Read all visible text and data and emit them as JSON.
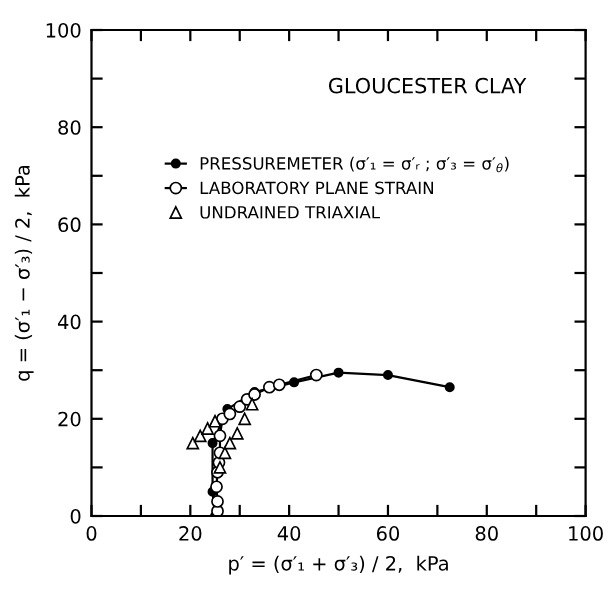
{
  "chart_data": {
    "type": "line",
    "title": "GLOUCESTER CLAY",
    "xlabel": "p′ = (σ′₁ + σ′₃) / 2,  kPa",
    "ylabel": "q = (σ′₁ − σ′₃) / 2,  kPa",
    "xlim": [
      0,
      100
    ],
    "ylim": [
      0,
      100
    ],
    "xticks": [
      0,
      {
        "value": 10,
        "label": null
      },
      20,
      {
        "value": 30,
        "label": null
      },
      40,
      {
        "value": 50,
        "label": null
      },
      60,
      {
        "value": 70,
        "label": null
      },
      80,
      {
        "value": 90,
        "label": null
      },
      100
    ],
    "yticks": [
      0,
      {
        "value": 10,
        "label": null
      },
      20,
      {
        "value": 30,
        "label": null
      },
      40,
      {
        "value": 50,
        "label": null
      },
      60,
      {
        "value": 70,
        "label": null
      },
      80,
      {
        "value": 90,
        "label": null
      },
      100
    ],
    "grid": false,
    "legend": "top",
    "series": [
      {
        "name": "PRESSUREMETER (σ′₁ = σ′ᵣ ; σ′₃ = σ′$_{θ}$)",
        "marker": "circle",
        "color": "#000000",
        "line_style": "solid",
        "x": [
          25,
          24.5,
          24.5,
          27.5,
          33,
          41,
          50,
          60,
          72.5
        ],
        "values": [
          0,
          5,
          15,
          22,
          25.5,
          27.5,
          29.5,
          29,
          26.5
        ]
      },
      {
        "name": "LABORATORY PLANE STRAIN",
        "marker": "circle",
        "color": "#000000",
        "line_style": "solid",
        "x": [
          25.5,
          25.5,
          25.3,
          25.5,
          25.8,
          26,
          26,
          26.5,
          28,
          30,
          31.5,
          33,
          36,
          38,
          45.5
        ],
        "values": [
          1,
          3,
          6,
          9,
          11,
          13,
          16.5,
          20,
          21,
          22.5,
          24,
          25,
          26.5,
          27,
          29
        ]
      },
      {
        "name": "UNDRAINED TRIAXIAL",
        "type": "scatter",
        "marker": "triangle",
        "color": "#000000",
        "x": [
          20.5,
          22,
          23.5,
          25,
          26,
          27,
          28,
          29.5,
          31,
          32.5
        ],
        "values": [
          15,
          16.5,
          18,
          19.5,
          10,
          13,
          15,
          17,
          20,
          23
        ]
      }
    ]
  }
}
